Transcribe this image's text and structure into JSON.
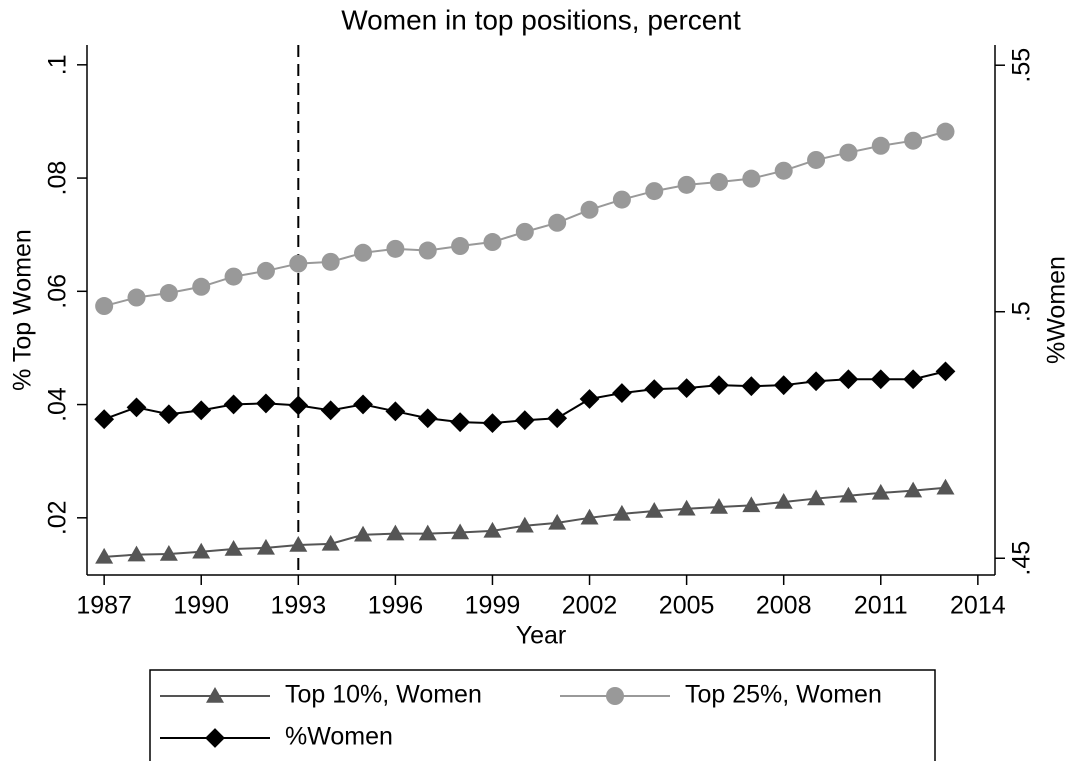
{
  "chart_data": {
    "type": "line",
    "title": "Women in top positions, percent",
    "xlabel": "Year",
    "ylabel": "% Top Women",
    "y2label": "%Women",
    "x": [
      1987,
      1988,
      1989,
      1990,
      1991,
      1992,
      1993,
      1994,
      1995,
      1996,
      1997,
      1998,
      1999,
      2000,
      2001,
      2002,
      2003,
      2004,
      2005,
      2006,
      2007,
      2008,
      2009,
      2010,
      2011,
      2012,
      2013
    ],
    "series": [
      {
        "name": "Top 10%, Women",
        "color": "#555555",
        "marker": "triangle",
        "values": [
          0.0131,
          0.0135,
          0.0136,
          0.014,
          0.0145,
          0.0147,
          0.0152,
          0.0154,
          0.017,
          0.0172,
          0.0172,
          0.0174,
          0.0177,
          0.0186,
          0.0191,
          0.02,
          0.0207,
          0.0212,
          0.0216,
          0.0219,
          0.0222,
          0.0228,
          0.0234,
          0.0239,
          0.0244,
          0.0248,
          0.0253
        ]
      },
      {
        "name": "Top 25%, Women",
        "color": "#999999",
        "marker": "circle",
        "values": [
          0.0574,
          0.0589,
          0.0597,
          0.0608,
          0.0626,
          0.0636,
          0.0649,
          0.0652,
          0.0668,
          0.0675,
          0.0672,
          0.068,
          0.0687,
          0.0705,
          0.0721,
          0.0744,
          0.0762,
          0.0777,
          0.0788,
          0.0793,
          0.0799,
          0.0813,
          0.0832,
          0.0845,
          0.0857,
          0.0866,
          0.0882
        ]
      },
      {
        "name": "%Women",
        "color": "#000000",
        "marker": "diamond",
        "axis": "y2",
        "values": [
          0.4782,
          0.4806,
          0.4792,
          0.48,
          0.4812,
          0.4814,
          0.481,
          0.48,
          0.4812,
          0.4798,
          0.4784,
          0.4776,
          0.4774,
          0.478,
          0.4784,
          0.4823,
          0.4835,
          0.4843,
          0.4845,
          0.4851,
          0.4849,
          0.4851,
          0.4859,
          0.4863,
          0.4863,
          0.4863,
          0.4879
        ]
      }
    ],
    "xlim": [
      1986.47,
      2014.53
    ],
    "xticks": [
      1987,
      1990,
      1993,
      1996,
      1999,
      2002,
      2005,
      2008,
      2011,
      2014
    ],
    "ylim": [
      0.0099,
      0.1035
    ],
    "yticks": [
      {
        "value": 0.02,
        "label": ".02"
      },
      {
        "value": 0.04,
        "label": ".04"
      },
      {
        "value": 0.06,
        "label": ".06"
      },
      {
        "value": 0.08,
        "label": ".08"
      },
      {
        "value": 0.1,
        "label": ".1"
      }
    ],
    "y2lim": [
      0.4466,
      0.5541
    ],
    "y2ticks": [
      {
        "value": 0.45,
        "label": ".45"
      },
      {
        "value": 0.5,
        "label": ".5"
      },
      {
        "value": 0.55,
        "label": ".55"
      }
    ],
    "xline": 1993,
    "grid": false
  }
}
